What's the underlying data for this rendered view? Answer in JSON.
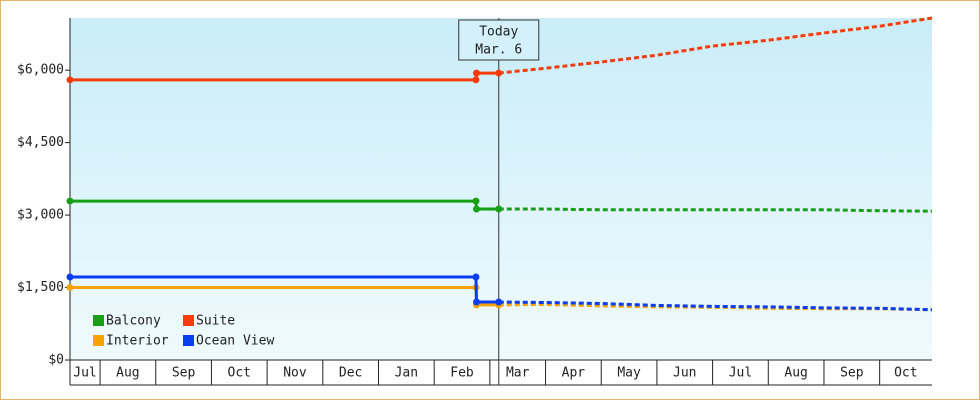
{
  "chart_data": {
    "type": "line",
    "x": [
      0.46,
      7.75,
      7.76,
      8.16,
      9,
      10,
      11,
      12,
      13,
      14,
      15,
      15.94
    ],
    "series": [
      {
        "name": "Balcony",
        "color": "#17a017",
        "values": [
          3290,
          3290,
          3125,
          3125,
          3125,
          3110,
          3110,
          3110,
          3110,
          3110,
          3090,
          3080
        ]
      },
      {
        "name": "Suite",
        "color": "#f53c0a",
        "values": [
          5800,
          5800,
          5940,
          5940,
          6040,
          6170,
          6310,
          6500,
          6620,
          6770,
          6910,
          7080
        ]
      },
      {
        "name": "Interior",
        "color": "#f5a300",
        "values": [
          1500,
          1500,
          1140,
          1140,
          1150,
          1120,
          1100,
          1090,
          1070,
          1060,
          1060,
          1040
        ]
      },
      {
        "name": "Ocean View",
        "color": "#0a3cf0",
        "values": [
          1717,
          1717,
          1200,
          1200,
          1190,
          1170,
          1130,
          1110,
          1100,
          1080,
          1070,
          1040
        ]
      }
    ],
    "xlim": [
      0.46,
      15.94
    ],
    "xticks": [
      {
        "value": 0,
        "label": "Jul"
      },
      {
        "value": 1,
        "label": "Aug"
      },
      {
        "value": 2,
        "label": "Sep"
      },
      {
        "value": 3,
        "label": "Oct"
      },
      {
        "value": 4,
        "label": "Nov"
      },
      {
        "value": 5,
        "label": "Dec"
      },
      {
        "value": 6,
        "label": "Jan"
      },
      {
        "value": 7,
        "label": "Feb"
      },
      {
        "value": 8,
        "label": "Mar"
      },
      {
        "value": 9,
        "label": "Apr"
      },
      {
        "value": 10,
        "label": "May"
      },
      {
        "value": 11,
        "label": "Jun"
      },
      {
        "value": 12,
        "label": "Jul"
      },
      {
        "value": 13,
        "label": "Aug"
      },
      {
        "value": 14,
        "label": "Sep"
      },
      {
        "value": 15,
        "label": "Oct"
      }
    ],
    "ylim": [
      0,
      7080
    ],
    "yticks": [
      {
        "value": 0,
        "label": "$0"
      },
      {
        "value": 1500,
        "label": "$1,500"
      },
      {
        "value": 3000,
        "label": "$3,000"
      },
      {
        "value": 4500,
        "label": "$4,500"
      },
      {
        "value": 6000,
        "label": "$6,000"
      }
    ],
    "today": {
      "x": 8.16,
      "label": [
        "Today",
        "Mar. 6"
      ]
    }
  }
}
